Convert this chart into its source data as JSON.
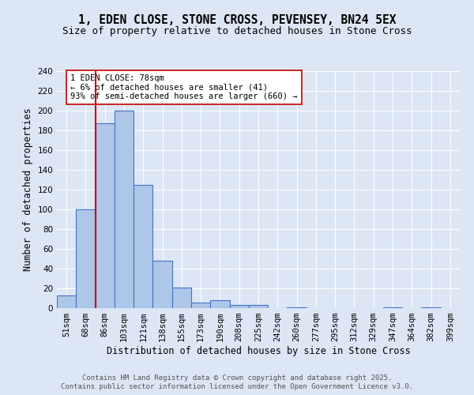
{
  "title_line1": "1, EDEN CLOSE, STONE CROSS, PEVENSEY, BN24 5EX",
  "title_line2": "Size of property relative to detached houses in Stone Cross",
  "xlabel": "Distribution of detached houses by size in Stone Cross",
  "ylabel": "Number of detached properties",
  "categories": [
    "51sqm",
    "68sqm",
    "86sqm",
    "103sqm",
    "121sqm",
    "138sqm",
    "155sqm",
    "173sqm",
    "190sqm",
    "208sqm",
    "225sqm",
    "242sqm",
    "260sqm",
    "277sqm",
    "295sqm",
    "312sqm",
    "329sqm",
    "347sqm",
    "364sqm",
    "382sqm",
    "399sqm"
  ],
  "values": [
    13,
    100,
    187,
    200,
    125,
    48,
    21,
    6,
    8,
    3,
    3,
    0,
    1,
    0,
    0,
    0,
    0,
    1,
    0,
    1,
    0
  ],
  "bar_color": "#aec6e8",
  "bar_edge_color": "#4472c4",
  "vline_x": 1.5,
  "vline_color": "#cc0000",
  "annotation_text": "1 EDEN CLOSE: 78sqm\n← 6% of detached houses are smaller (41)\n93% of semi-detached houses are larger (660) →",
  "annotation_box_color": "#ffffff",
  "annotation_box_edge_color": "#cc0000",
  "background_color": "#dce6f5",
  "grid_color": "#ffffff",
  "ylim": [
    0,
    240
  ],
  "yticks": [
    0,
    20,
    40,
    60,
    80,
    100,
    120,
    140,
    160,
    180,
    200,
    220,
    240
  ],
  "footer_line1": "Contains HM Land Registry data © Crown copyright and database right 2025.",
  "footer_line2": "Contains public sector information licensed under the Open Government Licence v3.0.",
  "title_fontsize": 10.5,
  "subtitle_fontsize": 9,
  "axis_label_fontsize": 8.5,
  "tick_fontsize": 7.5,
  "annotation_fontsize": 7.5,
  "footer_fontsize": 6.5
}
